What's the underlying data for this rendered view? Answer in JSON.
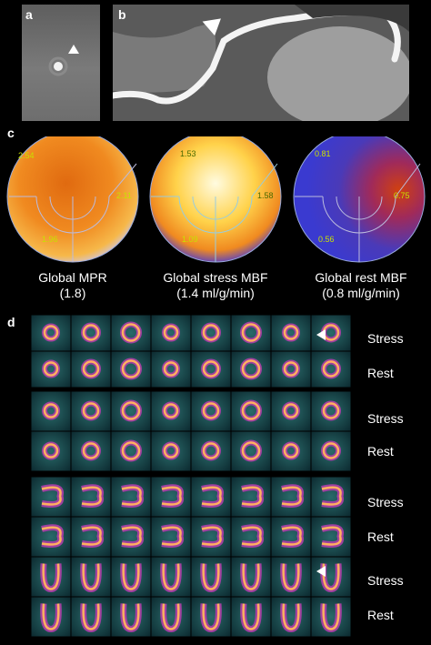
{
  "panels": {
    "a": {
      "letter": "a"
    },
    "b": {
      "letter": "b"
    },
    "c": {
      "letter": "c"
    },
    "d": {
      "letter": "d"
    }
  },
  "polar_maps": [
    {
      "id": "mpr",
      "caption_line1": "Global  MPR",
      "caption_line2": "(1.8)",
      "values": [
        "2.54",
        "2.11",
        "1.96"
      ]
    },
    {
      "id": "stress",
      "caption_line1": "Global stress MBF",
      "caption_line2": "(1.4 ml/g/min)",
      "values": [
        "1.53",
        "1.58",
        "1.09"
      ]
    },
    {
      "id": "rest",
      "caption_line1": "Global rest MBF",
      "caption_line2": "(0.8 ml/g/min)",
      "values": [
        "0.81",
        "0.75",
        "0.56"
      ]
    }
  ],
  "row_labels": [
    "Stress",
    "Rest",
    "Stress",
    "Rest",
    "Stress",
    "Rest",
    "Stress",
    "Rest"
  ],
  "colors": {
    "background": "#000000",
    "text": "#ffffff",
    "values": "#c8e000"
  }
}
